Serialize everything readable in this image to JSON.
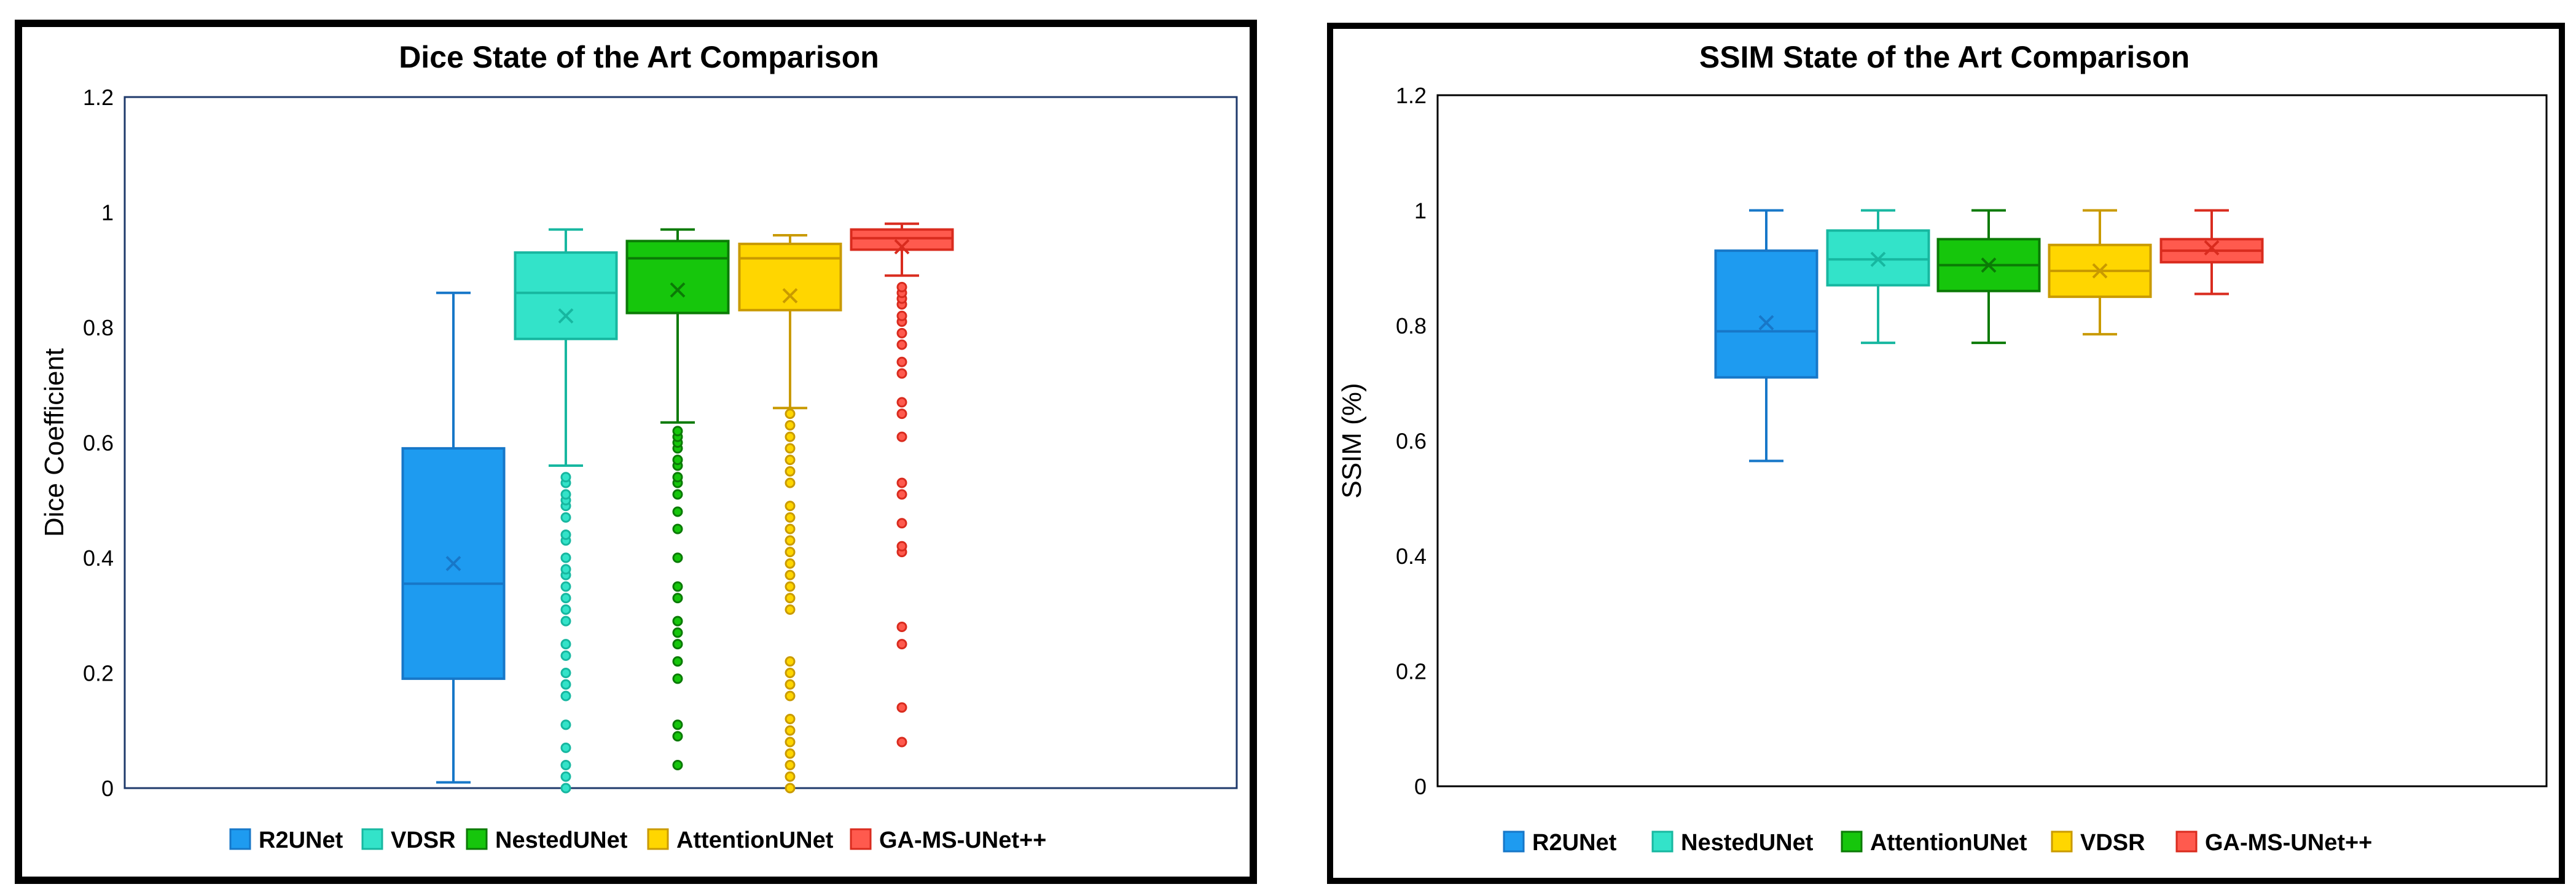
{
  "charts": [
    {
      "chart_data": {
        "type": "box",
        "title": "Dice State of the Art Comparison",
        "xlabel": "",
        "ylabel": "Dice Coefficient",
        "ylim": [
          0,
          1.2
        ],
        "yticks": [
          0,
          0.2,
          0.4,
          0.6,
          0.8,
          1,
          1.2
        ],
        "ytick_labels": [
          "0",
          "0.2",
          "0.4",
          "0.6",
          "0.8",
          "1",
          "1.2"
        ],
        "grid": false,
        "legend_position": "bottom",
        "series": [
          {
            "name": "R2UNet",
            "color": "#1E9BF0",
            "edge": "#1777C8",
            "min": 0.01,
            "q1": 0.19,
            "median": 0.355,
            "q3": 0.59,
            "max": 0.86,
            "mean": 0.39,
            "outliers": []
          },
          {
            "name": "VDSR",
            "color": "#33E3C9",
            "edge": "#17B7A0",
            "min": 0.56,
            "q1": 0.78,
            "median": 0.86,
            "q3": 0.93,
            "max": 0.97,
            "mean": 0.82,
            "outliers": [
              0.0,
              0.02,
              0.04,
              0.07,
              0.11,
              0.16,
              0.18,
              0.2,
              0.23,
              0.25,
              0.29,
              0.31,
              0.33,
              0.35,
              0.37,
              0.38,
              0.4,
              0.43,
              0.44,
              0.47,
              0.49,
              0.5,
              0.51,
              0.53,
              0.54
            ]
          },
          {
            "name": "NestedUNet",
            "color": "#16C60C",
            "edge": "#0B7A06",
            "min": 0.635,
            "q1": 0.825,
            "median": 0.92,
            "q3": 0.95,
            "max": 0.97,
            "mean": 0.865,
            "outliers": [
              0.04,
              0.09,
              0.11,
              0.19,
              0.22,
              0.25,
              0.27,
              0.29,
              0.33,
              0.35,
              0.4,
              0.45,
              0.48,
              0.51,
              0.53,
              0.54,
              0.56,
              0.57,
              0.59,
              0.6,
              0.61,
              0.62
            ]
          },
          {
            "name": "AttentionUNet",
            "color": "#FFD600",
            "edge": "#C99A00",
            "min": 0.66,
            "q1": 0.83,
            "median": 0.92,
            "q3": 0.945,
            "max": 0.96,
            "mean": 0.855,
            "outliers": [
              0.0,
              0.02,
              0.04,
              0.06,
              0.08,
              0.1,
              0.12,
              0.16,
              0.18,
              0.2,
              0.22,
              0.31,
              0.33,
              0.35,
              0.37,
              0.39,
              0.41,
              0.43,
              0.45,
              0.47,
              0.49,
              0.53,
              0.55,
              0.57,
              0.59,
              0.61,
              0.63,
              0.65
            ]
          },
          {
            "name": "GA-MS-UNet++",
            "color": "#FF5A4E",
            "edge": "#D92B1E",
            "min": 0.89,
            "q1": 0.935,
            "median": 0.955,
            "q3": 0.97,
            "max": 0.98,
            "mean": 0.94,
            "outliers": [
              0.08,
              0.14,
              0.25,
              0.28,
              0.41,
              0.42,
              0.46,
              0.51,
              0.53,
              0.61,
              0.65,
              0.67,
              0.72,
              0.74,
              0.77,
              0.79,
              0.81,
              0.82,
              0.84,
              0.85,
              0.86,
              0.87
            ]
          }
        ]
      }
    },
    {
      "chart_data": {
        "type": "box",
        "title": "SSIM State of the Art Comparison",
        "xlabel": "",
        "ylabel": "SSIM (%)",
        "ylim": [
          0,
          1.2
        ],
        "yticks": [
          0,
          0.2,
          0.4,
          0.6,
          0.8,
          1,
          1.2
        ],
        "ytick_labels": [
          "0",
          "0.2",
          "0.4",
          "0.6",
          "0.8",
          "1",
          "1.2"
        ],
        "grid": false,
        "legend_position": "bottom",
        "series": [
          {
            "name": "R2UNet",
            "color": "#1E9BF0",
            "edge": "#1777C8",
            "min": 0.565,
            "q1": 0.71,
            "median": 0.79,
            "q3": 0.93,
            "max": 1.0,
            "mean": 0.805,
            "outliers": []
          },
          {
            "name": "NestedUNet",
            "color": "#33E3C9",
            "edge": "#17B7A0",
            "min": 0.77,
            "q1": 0.87,
            "median": 0.915,
            "q3": 0.965,
            "max": 1.0,
            "mean": 0.915,
            "outliers": []
          },
          {
            "name": "AttentionUNet",
            "color": "#16C60C",
            "edge": "#0B7A06",
            "min": 0.77,
            "q1": 0.86,
            "median": 0.905,
            "q3": 0.95,
            "max": 1.0,
            "mean": 0.905,
            "outliers": []
          },
          {
            "name": "VDSR",
            "color": "#FFD600",
            "edge": "#C99A00",
            "min": 0.785,
            "q1": 0.85,
            "median": 0.895,
            "q3": 0.94,
            "max": 1.0,
            "mean": 0.895,
            "outliers": []
          },
          {
            "name": "GA-MS-UNet++",
            "color": "#FF5A4E",
            "edge": "#D92B1E",
            "min": 0.855,
            "q1": 0.91,
            "median": 0.93,
            "q3": 0.95,
            "max": 1.0,
            "mean": 0.935,
            "outliers": []
          }
        ]
      }
    }
  ]
}
